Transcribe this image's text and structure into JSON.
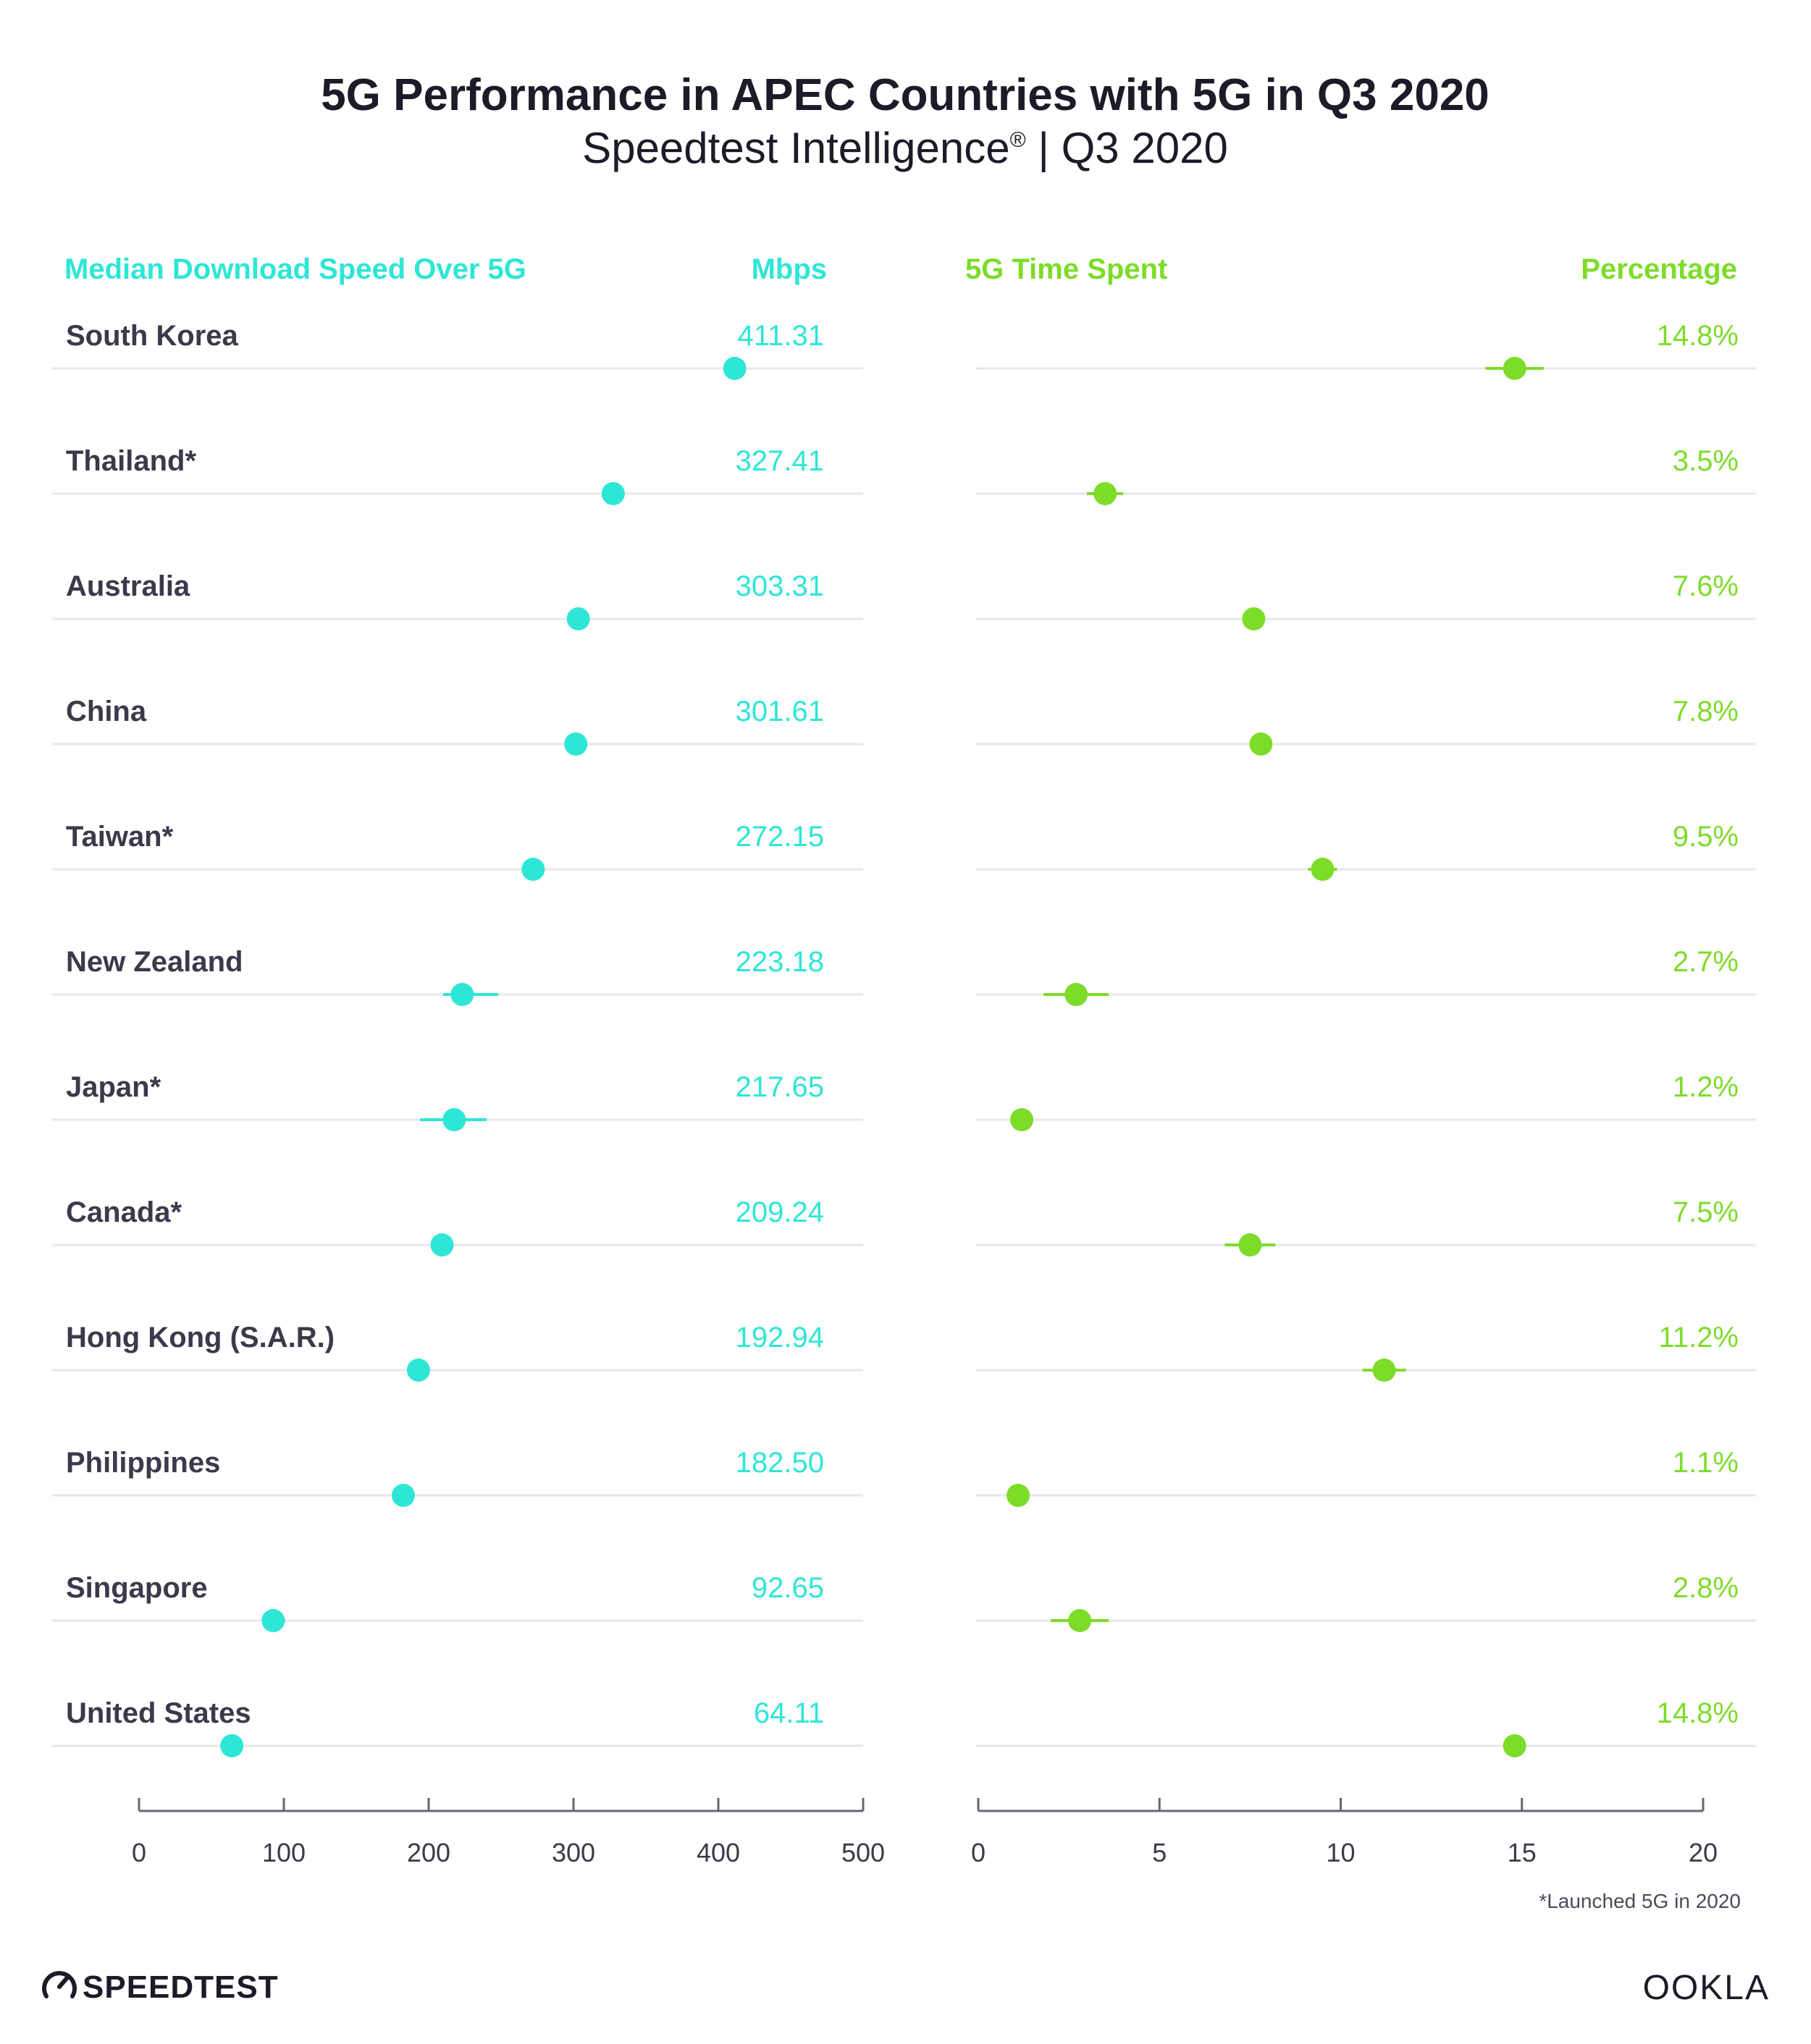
{
  "header": {
    "title": "5G Performance in APEC Countries with 5G in Q3 2020",
    "subtitle": "Speedtest Intelligence",
    "subtitle_mark": "®",
    "subtitle_period": " | Q3 2020"
  },
  "colors": {
    "download": "#2ee6d6",
    "time_spent": "#7ddc2a",
    "text": "#3a3a4a",
    "gridline": "#e8e8ec",
    "axis": "#666677"
  },
  "chart_data": [
    {
      "type": "scatter",
      "title": "Median Download Speed Over 5G",
      "unit_label": "Mbps",
      "xlim": [
        0,
        500
      ],
      "xticks": [
        "0",
        "100",
        "200",
        "300",
        "400",
        "500"
      ],
      "xtick_values": [
        0,
        100,
        200,
        300,
        400,
        500
      ],
      "categories": [
        "South Korea",
        "Thailand*",
        "Australia",
        "China",
        "Taiwan*",
        "New Zealand",
        "Japan*",
        "Canada*",
        "Hong Kong (S.A.R.)",
        "Philippines",
        "Singapore",
        "United States"
      ],
      "labels": [
        "411.31",
        "327.41",
        "303.31",
        "301.61",
        "272.15",
        "223.18",
        "217.65",
        "209.24",
        "192.94",
        "182.50",
        "92.65",
        "64.11"
      ],
      "values": [
        411.31,
        327.41,
        303.31,
        301.61,
        272.15,
        223.18,
        217.65,
        209.24,
        192.94,
        182.5,
        92.65,
        64.11
      ],
      "ci_low": [
        408,
        322,
        297,
        295,
        265,
        210,
        194,
        203,
        187,
        176,
        85,
        58
      ],
      "ci_high": [
        415,
        333,
        310,
        309,
        279,
        248,
        240,
        216,
        199,
        189,
        101,
        70
      ]
    },
    {
      "type": "scatter",
      "title": "5G Time Spent",
      "unit_label": "Percentage",
      "xlim": [
        0,
        20
      ],
      "xticks": [
        "0",
        "5",
        "10",
        "15",
        "20"
      ],
      "xtick_values": [
        0,
        5,
        10,
        15,
        20
      ],
      "categories": [
        "South Korea",
        "Thailand*",
        "Australia",
        "China",
        "Taiwan*",
        "New Zealand",
        "Japan*",
        "Canada*",
        "Hong Kong (S.A.R.)",
        "Philippines",
        "Singapore",
        "United States"
      ],
      "labels": [
        "14.8%",
        "3.5%",
        "7.6%",
        "7.8%",
        "9.5%",
        "2.7%",
        "1.2%",
        "7.5%",
        "11.2%",
        "1.1%",
        "2.8%",
        "14.8%"
      ],
      "values": [
        14.8,
        3.5,
        7.6,
        7.8,
        9.5,
        2.7,
        1.2,
        7.5,
        11.2,
        1.1,
        2.8,
        14.8
      ],
      "ci_low": [
        14.0,
        3.0,
        7.3,
        7.6,
        9.1,
        1.8,
        1.0,
        6.8,
        10.6,
        0.9,
        2.0,
        14.6
      ],
      "ci_high": [
        15.6,
        4.0,
        7.9,
        8.0,
        9.9,
        3.6,
        1.4,
        8.2,
        11.8,
        1.3,
        3.6,
        15.0
      ]
    }
  ],
  "footnote": "*Launched 5G in 2020",
  "brand": {
    "speedtest": "SPEEDTEST",
    "ookla": "OOKLA"
  }
}
